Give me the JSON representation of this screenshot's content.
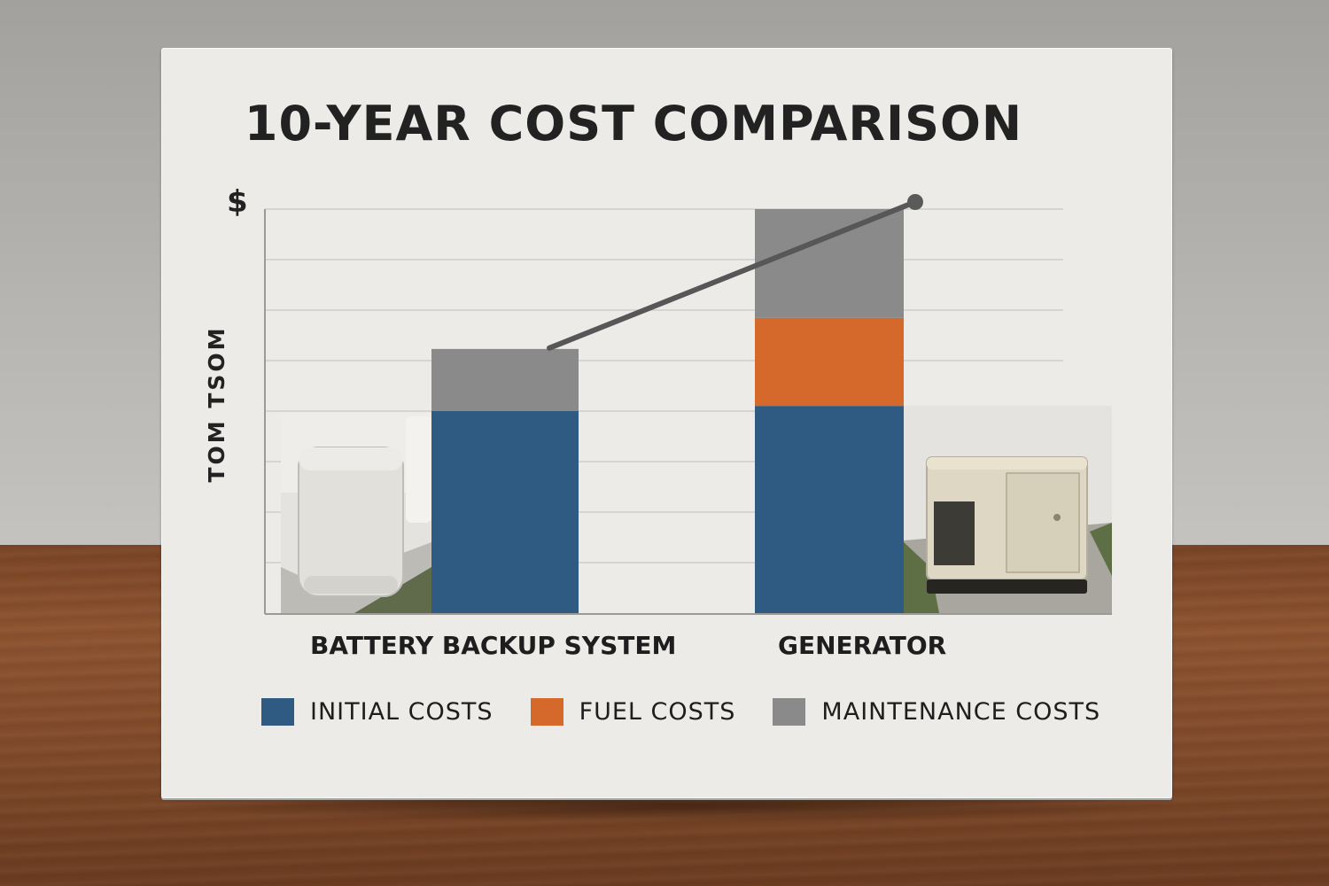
{
  "chart_data": {
    "type": "bar",
    "stacked": true,
    "title": "10-YEAR COST COMPARISON",
    "ylabel_symbol": "$",
    "ylabel": "TOM TSOM",
    "categories": [
      "BATTERY BACKUP SYSTEM",
      "GENERATOR"
    ],
    "series": [
      {
        "name": "INITIAL COSTS",
        "color": "#2f5a82",
        "values": [
          3.9,
          4.0
        ]
      },
      {
        "name": "FUEL COSTS",
        "color": "#d4692b",
        "values": [
          0,
          1.7
        ]
      },
      {
        "name": "MAINTENANCE COSTS",
        "color": "#8a8a8a",
        "values": [
          1.2,
          2.1
        ]
      }
    ],
    "trend_line": [
      5.1,
      7.8
    ],
    "ylim": [
      0,
      7.8
    ],
    "grid": true,
    "legend_position": "bottom"
  }
}
